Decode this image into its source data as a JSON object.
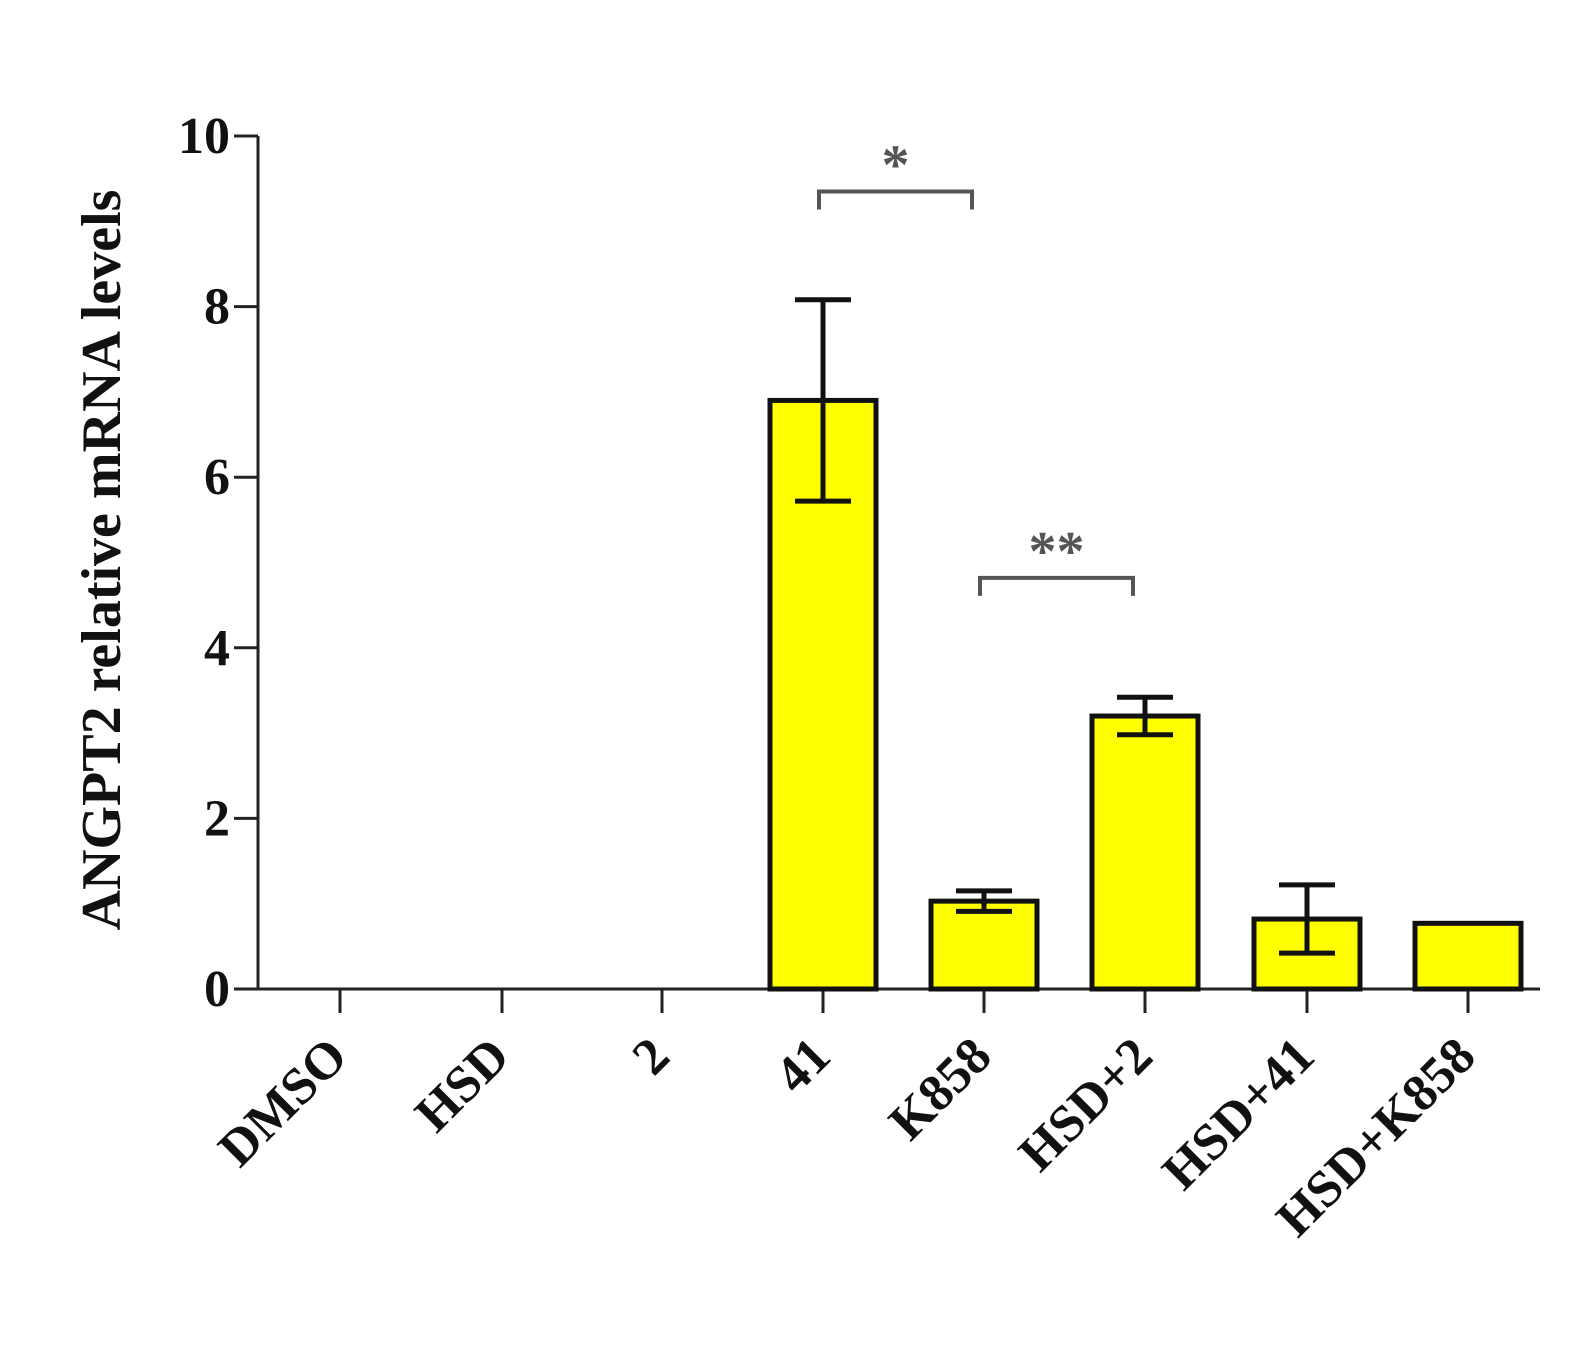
{
  "chart_data": {
    "type": "bar",
    "title": "",
    "xlabel": "",
    "ylabel": "ANGPT2 relative mRNA levels",
    "ylim": [
      0,
      10
    ],
    "yticks": [
      0,
      2,
      4,
      6,
      8,
      10
    ],
    "grid": false,
    "categories": [
      "DMSO",
      "HSD",
      "2",
      "41",
      "K858",
      "HSD+2",
      "HSD+41",
      "HSD+K858"
    ],
    "values": [
      0,
      0,
      0,
      6.9,
      1.03,
      3.2,
      0.82,
      0.77
    ],
    "error": [
      0,
      0,
      0,
      1.18,
      0.12,
      0.22,
      0.4,
      0
    ],
    "colors": {
      "bar_fill": "#ffff00",
      "bar_stroke": "#111111",
      "axis": "#222222",
      "significance": "#555555"
    },
    "annotations": [
      {
        "label": "*",
        "from": "41",
        "to": "K858",
        "y": 9.35
      },
      {
        "label": "**",
        "from": "K858",
        "to": "HSD+2",
        "y": 4.82
      }
    ]
  }
}
